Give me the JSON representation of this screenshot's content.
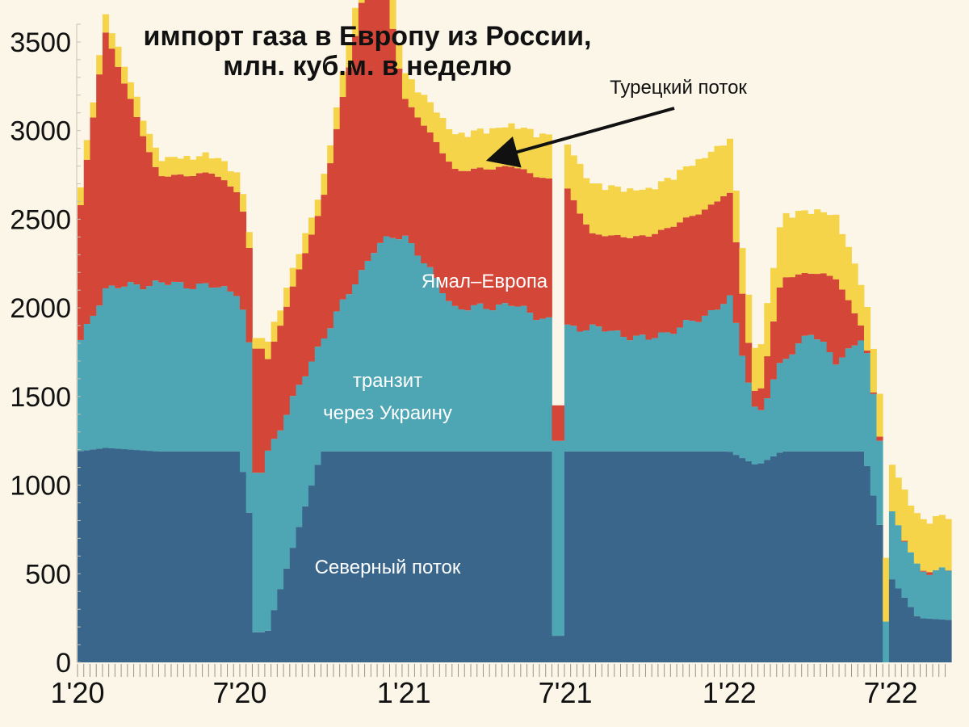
{
  "chart_data": {
    "type": "area",
    "stacked": true,
    "title_lines": [
      "импорт газа в Европу из России,",
      "млн. куб.м. в неделю"
    ],
    "xlabel": "",
    "ylabel": "",
    "ylim": [
      0,
      3600
    ],
    "yticks": [
      0,
      500,
      1000,
      1500,
      2000,
      2500,
      3000,
      3500
    ],
    "xticks": [
      {
        "label": "1'20",
        "x": "2020-01-01"
      },
      {
        "label": "7'20",
        "x": "2020-07-01"
      },
      {
        "label": "1'21",
        "x": "2021-01-01"
      },
      {
        "label": "7'21",
        "x": "2021-07-01"
      },
      {
        "label": "1'22",
        "x": "2022-01-01"
      },
      {
        "label": "7'22",
        "x": "2022-07-01"
      }
    ],
    "grid": false,
    "legend": "inline labels",
    "colors": {
      "nord": "#3A668C",
      "ukraine": "#4EA6B4",
      "yamal": "#D44637",
      "turk": "#F5D44A",
      "background": "#FBF6E8"
    },
    "key_points": {
      "x": [
        "2020-01-01",
        "2020-02-01",
        "2020-04-01",
        "2020-06-01",
        "2020-07-01",
        "2020-08-01",
        "2020-10-01",
        "2020-12-01",
        "2021-01-01",
        "2021-03-01",
        "2021-05-01",
        "2021-07-01",
        "2021-08-01",
        "2021-10-01",
        "2021-12-01",
        "2022-01-01",
        "2022-02-01",
        "2022-03-01",
        "2022-04-01",
        "2022-05-01",
        "2022-06-01",
        "2022-07-01",
        "2022-08-01",
        "2022-09-01"
      ],
      "series": [
        {
          "name": "Северный поток",
          "values": [
            1190,
            1210,
            1190,
            1190,
            1190,
            170,
            1190,
            1190,
            1190,
            1190,
            1190,
            1190,
            1190,
            1190,
            1190,
            1190,
            1110,
            1190,
            1190,
            1190,
            1190,
            480,
            250,
            240
          ]
        },
        {
          "name": "транзит через Украину",
          "values": [
            580,
            900,
            950,
            930,
            900,
            1010,
            630,
            1160,
            1230,
            800,
            830,
            700,
            700,
            630,
            750,
            870,
            270,
            500,
            680,
            510,
            650,
            380,
            270,
            280
          ]
        },
        {
          "name": "Ямал–Европа",
          "values": [
            680,
            1450,
            600,
            640,
            560,
            520,
            760,
            1790,
            770,
            780,
            780,
            800,
            520,
            580,
            600,
            600,
            50,
            480,
            330,
            470,
            30,
            0,
            0,
            0
          ]
        },
        {
          "name": "Турецкий поток",
          "values": [
            100,
            100,
            100,
            100,
            100,
            100,
            100,
            180,
            140,
            200,
            230,
            250,
            280,
            260,
            300,
            300,
            240,
            350,
            350,
            350,
            230,
            270,
            280,
            300
          ]
        }
      ]
    },
    "dips": [
      {
        "x": "2020-07-20",
        "values": {
          "Северный поток": 170,
          "транзит через Украину": 900,
          "Ямал–Европа": 700,
          "Турецкий поток": 60
        }
      },
      {
        "x": "2021-06-20",
        "values": {
          "Северный поток": 150,
          "транзит через Украину": 1100,
          "Ямал–Европа": 200,
          "Турецкий поток": 0
        }
      },
      {
        "x": "2022-06-23",
        "values": {
          "Северный поток": 0,
          "транзит через Украину": 230,
          "Ямал–Европа": 0,
          "Турецкий поток": 360
        }
      }
    ],
    "annotations": [
      {
        "text": "Турецкий поток",
        "arrow_to": {
          "x": "2021-04-10",
          "y": 2840
        }
      },
      {
        "text": "Ямал–Европа"
      },
      {
        "text": "транзит"
      },
      {
        "text": "через Украину"
      },
      {
        "text": "Северный поток"
      }
    ]
  }
}
